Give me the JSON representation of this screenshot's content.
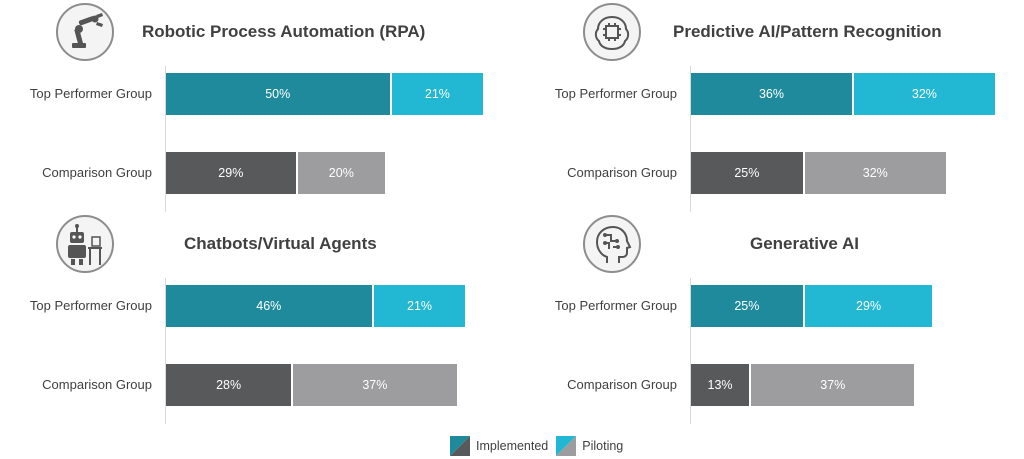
{
  "colors": {
    "top_implemented": "#1f8a9c",
    "top_piloting": "#22b8d3",
    "comparison_implemented": "#58595b",
    "comparison_piloting": "#9d9d9f"
  },
  "legend": {
    "implemented": "Implemented",
    "piloting": "Piloting"
  },
  "chart_data": [
    {
      "type": "bar",
      "orientation": "horizontal",
      "stacked": true,
      "title": "Robotic Process Automation (RPA)",
      "icon": "robot-arm-icon",
      "categories": [
        "Top Performer Group",
        "Comparison Group"
      ],
      "series": [
        {
          "name": "Implemented",
          "values": [
            50,
            29
          ]
        },
        {
          "name": "Piloting",
          "values": [
            21,
            20
          ]
        }
      ],
      "labels": {
        "implemented": [
          "50%",
          "29%"
        ],
        "piloting": [
          "21%",
          "20%"
        ]
      },
      "xlim": [
        0,
        71
      ]
    },
    {
      "type": "bar",
      "orientation": "horizontal",
      "stacked": true,
      "title": "Predictive AI/Pattern Recognition",
      "icon": "brain-chip-icon",
      "categories": [
        "Top Performer Group",
        "Comparison Group"
      ],
      "series": [
        {
          "name": "Implemented",
          "values": [
            36,
            25
          ]
        },
        {
          "name": "Piloting",
          "values": [
            32,
            32
          ]
        }
      ],
      "labels": {
        "implemented": [
          "36%",
          "25%"
        ],
        "piloting": [
          "32%",
          "32%"
        ]
      },
      "xlim": [
        0,
        71
      ]
    },
    {
      "type": "bar",
      "orientation": "horizontal",
      "stacked": true,
      "title": "Chatbots/Virtual Agents",
      "icon": "robot-agent-icon",
      "categories": [
        "Top Performer Group",
        "Comparison Group"
      ],
      "series": [
        {
          "name": "Implemented",
          "values": [
            46,
            28
          ]
        },
        {
          "name": "Piloting",
          "values": [
            21,
            37
          ]
        }
      ],
      "labels": {
        "implemented": [
          "46%",
          "28%"
        ],
        "piloting": [
          "21%",
          "37%"
        ]
      },
      "xlim": [
        0,
        71
      ]
    },
    {
      "type": "bar",
      "orientation": "horizontal",
      "stacked": true,
      "title": "Generative AI",
      "icon": "ai-head-icon",
      "categories": [
        "Top Performer Group",
        "Comparison Group"
      ],
      "series": [
        {
          "name": "Implemented",
          "values": [
            25,
            13
          ]
        },
        {
          "name": "Piloting",
          "values": [
            29,
            37
          ]
        }
      ],
      "labels": {
        "implemented": [
          "25%",
          "13%"
        ],
        "piloting": [
          "29%",
          "37%"
        ]
      },
      "xlim": [
        0,
        54
      ]
    }
  ]
}
